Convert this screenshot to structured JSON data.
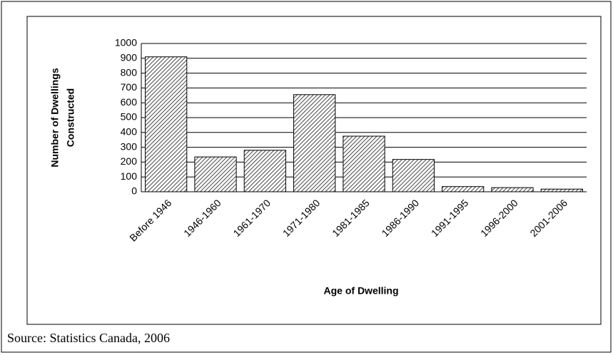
{
  "chart_data": {
    "type": "bar",
    "y_label": [
      "Number of Dwellings",
      "Constructed"
    ],
    "x_label": "Age of Dwelling",
    "source": "Source: Statistics Canada, 2006",
    "categories": [
      "Before 1946",
      "1946-1960",
      "1961-1970",
      "1971-1980",
      "1981-1985",
      "1986-1990",
      "1991-1995",
      "1996-2000",
      "2001-2006"
    ],
    "values": [
      910,
      235,
      280,
      655,
      375,
      218,
      35,
      28,
      18
    ],
    "color": "#555555",
    "ylim": [
      0,
      1000
    ],
    "yticks": [
      0,
      100,
      200,
      300,
      400,
      500,
      600,
      700,
      800,
      900,
      1000
    ],
    "grid": true
  }
}
